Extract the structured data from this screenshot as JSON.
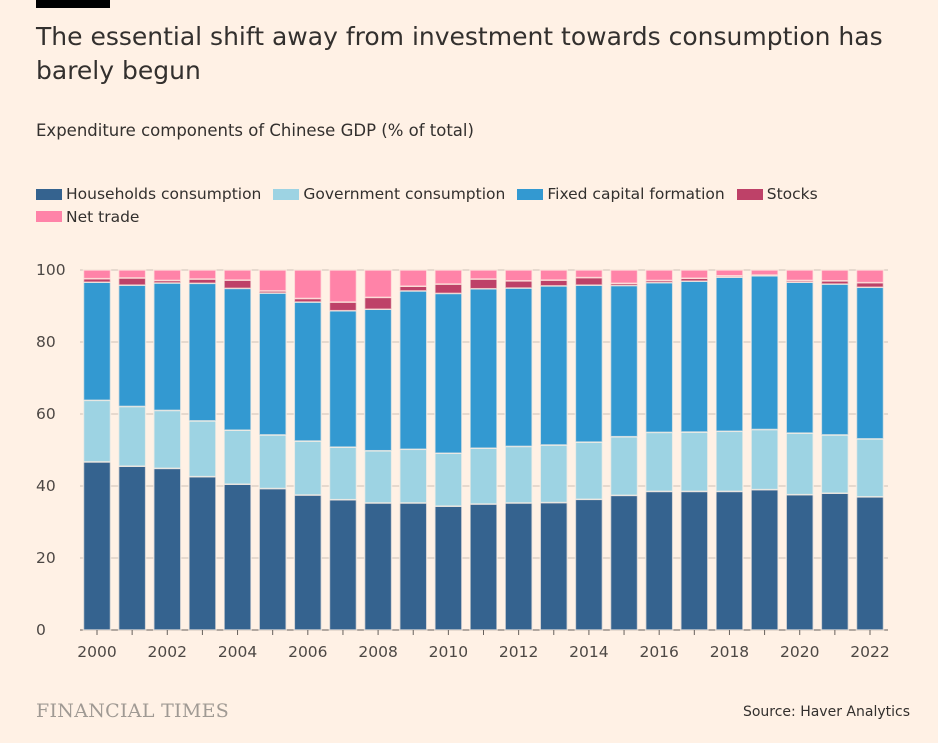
{
  "title": "The essential shift away from investment towards consumption has barely begun",
  "subtitle": "Expenditure components of Chinese GDP (% of total)",
  "source": "Source: Haver Analytics",
  "logo": "FINANCIAL TIMES",
  "chart_data": {
    "type": "bar",
    "stacked": true,
    "title": "Expenditure components of Chinese GDP (% of total)",
    "xlabel": "",
    "ylabel": "",
    "ylim": [
      0,
      100
    ],
    "yticks": [
      0,
      20,
      40,
      60,
      80,
      100
    ],
    "grid": true,
    "legend": "top",
    "categories": [
      2000,
      2001,
      2002,
      2003,
      2004,
      2005,
      2006,
      2007,
      2008,
      2009,
      2010,
      2011,
      2012,
      2013,
      2014,
      2015,
      2016,
      2017,
      2018,
      2019,
      2020,
      2021,
      2022
    ],
    "xtick_labels": [
      "2000",
      "2002",
      "2004",
      "2006",
      "2008",
      "2010",
      "2012",
      "2014",
      "2016",
      "2018",
      "2020",
      "2022"
    ],
    "series": [
      {
        "name": "Households consumption",
        "color": "#35638f",
        "values": [
          46.7,
          45.5,
          44.9,
          42.6,
          40.5,
          39.3,
          37.5,
          36.2,
          35.3,
          35.3,
          34.4,
          35.0,
          35.3,
          35.4,
          36.3,
          37.4,
          38.5,
          38.5,
          38.5,
          39.0,
          37.6,
          38.0,
          37.0
        ]
      },
      {
        "name": "Government consumption",
        "color": "#9dd3e3",
        "values": [
          17.1,
          16.6,
          16.1,
          15.5,
          15.0,
          14.9,
          15.0,
          14.6,
          14.5,
          14.9,
          14.7,
          15.5,
          15.7,
          16.0,
          15.9,
          16.3,
          16.4,
          16.5,
          16.7,
          16.7,
          17.1,
          16.2,
          16.1
        ]
      },
      {
        "name": "Fixed capital formation",
        "color": "#3399d1",
        "values": [
          32.8,
          33.7,
          35.4,
          38.2,
          39.4,
          39.4,
          38.6,
          37.9,
          39.3,
          44.0,
          44.4,
          44.3,
          44.0,
          44.2,
          43.6,
          42.0,
          41.6,
          41.9,
          42.8,
          42.7,
          41.9,
          41.9,
          42.1
        ]
      },
      {
        "name": "Stocks",
        "color": "#be4168",
        "values": [
          1.0,
          2.0,
          0.7,
          1.2,
          2.3,
          0.6,
          1.0,
          2.4,
          3.3,
          1.3,
          2.6,
          2.7,
          2.0,
          1.6,
          2.1,
          0.6,
          0.6,
          0.8,
          0.4,
          0.2,
          0.5,
          0.9,
          1.3
        ]
      },
      {
        "name": "Net trade",
        "color": "#ff83a8",
        "values": [
          2.4,
          2.2,
          2.9,
          2.5,
          2.8,
          5.8,
          7.9,
          8.9,
          7.6,
          4.5,
          3.9,
          2.5,
          3.0,
          2.8,
          2.1,
          3.7,
          2.9,
          2.3,
          1.6,
          1.4,
          2.9,
          3.0,
          3.5
        ]
      }
    ]
  }
}
